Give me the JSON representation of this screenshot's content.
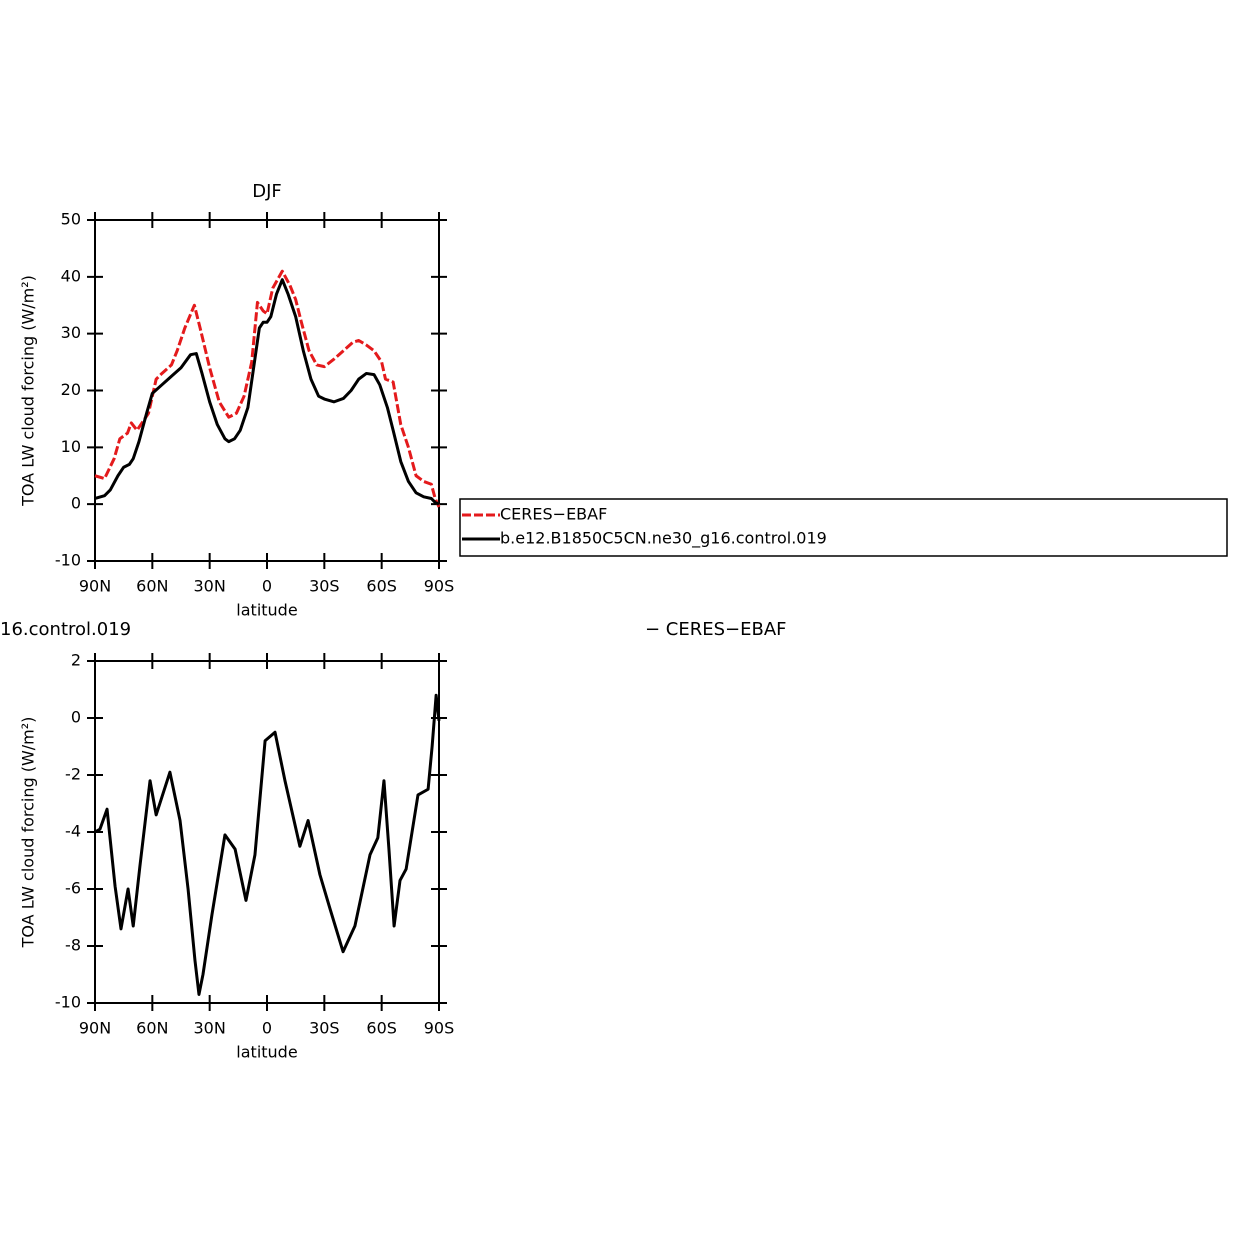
{
  "chart_data": [
    {
      "type": "line",
      "title": "DJF",
      "ylabel": "TOA LW cloud forcing (W/m²)",
      "xlabel": "latitude",
      "xlim": [
        90,
        -90
      ],
      "ylim": [
        -10,
        50
      ],
      "xticks": [
        {
          "value": 90,
          "label": "90N"
        },
        {
          "value": 60,
          "label": "60N"
        },
        {
          "value": 30,
          "label": "30N"
        },
        0,
        {
          "value": -30,
          "label": "30S"
        },
        {
          "value": -60,
          "label": "60S"
        },
        {
          "value": -90,
          "label": "90S"
        }
      ],
      "yticks": [
        -10,
        0,
        10,
        20,
        30,
        40,
        50
      ],
      "legend": "right",
      "series": [
        {
          "name": "CERES−EBAF",
          "color": "#e41a1c",
          "dashed": true,
          "x": [
            90,
            85,
            80,
            77,
            73,
            71,
            68,
            65,
            62,
            58,
            55,
            50,
            47,
            43,
            38,
            35,
            30,
            25,
            20,
            16,
            12,
            8,
            5,
            2,
            0,
            -3,
            -8,
            -12,
            -15,
            -18,
            -22,
            -26,
            -30,
            -35,
            -40,
            -45,
            -48,
            -52,
            -56,
            -60,
            -62,
            -66,
            -70,
            -74,
            -78,
            -82,
            -86,
            -88,
            -90
          ],
          "values": [
            5,
            4.5,
            8,
            11.5,
            12.5,
            14.3,
            13,
            14.5,
            16,
            22,
            23,
            24.5,
            27,
            31,
            35,
            31,
            24,
            18,
            15.3,
            16,
            19,
            25,
            35.5,
            34,
            33.5,
            38,
            41,
            38.5,
            36,
            32,
            27,
            24.5,
            24.2,
            25.5,
            27,
            28.5,
            28.8,
            28,
            27,
            25,
            22,
            21.5,
            14,
            10,
            5,
            4,
            3.5,
            1,
            -0.5
          ]
        },
        {
          "name": "b.e12.B1850C5CN.ne30_g16.control.019",
          "color": "#000000",
          "dashed": false,
          "x": [
            90,
            85,
            82,
            78,
            75,
            72,
            70,
            67,
            63,
            60,
            55,
            50,
            45,
            40,
            37,
            34,
            30,
            26,
            22,
            20,
            17,
            14,
            10,
            7,
            4,
            2,
            0,
            -2,
            -5,
            -8,
            -11,
            -15,
            -19,
            -23,
            -27,
            -30,
            -35,
            -40,
            -44,
            -48,
            -52,
            -56,
            -59,
            -63,
            -66,
            -70,
            -74,
            -78,
            -82,
            -86,
            -88,
            -90
          ],
          "values": [
            1,
            1.5,
            2.5,
            5,
            6.5,
            7,
            8,
            11,
            16,
            19.5,
            21,
            22.5,
            24,
            26.3,
            26.5,
            23,
            18,
            14,
            11.5,
            11,
            11.5,
            13,
            17,
            24,
            31,
            32,
            32,
            33,
            37,
            39.5,
            37,
            33,
            27,
            22,
            19,
            18.5,
            18,
            18.6,
            20,
            22,
            23,
            22.8,
            21,
            17,
            13,
            7.5,
            4,
            2,
            1.3,
            1,
            0.3,
            0
          ]
        }
      ]
    },
    {
      "type": "line",
      "title": "16.control.019",
      "subtitle": "− CERES−EBAF",
      "ylabel": "TOA LW cloud forcing (W/m²)",
      "xlabel": "latitude",
      "xlim": [
        90,
        -90
      ],
      "ylim": [
        -10,
        2
      ],
      "xticks": [
        {
          "value": 90,
          "label": "90N"
        },
        {
          "value": 60,
          "label": "60N"
        },
        {
          "value": 30,
          "label": "30N"
        },
        0,
        {
          "value": -30,
          "label": "30S"
        },
        {
          "value": -60,
          "label": "60S"
        },
        {
          "value": -90,
          "label": "90S"
        }
      ],
      "yticks": [
        -10,
        -8,
        -6,
        -4,
        -2,
        0,
        2
      ],
      "series": [
        {
          "color": "#000000",
          "dashed": false,
          "x": [
            90,
            87.4,
            83.7,
            79.5,
            76.4,
            72.7,
            70,
            66.5,
            61.2,
            58,
            50.8,
            45.5,
            41.3,
            37.7,
            35.6,
            33.5,
            28.8,
            22,
            16.7,
            11,
            6.3,
            1,
            -4.2,
            -9.4,
            -17.2,
            -21.5,
            -27.7,
            -33,
            -39.8,
            -46,
            -53.9,
            -58,
            -61.2,
            -63.8,
            -66.5,
            -69.6,
            -72.8,
            -79,
            -84.3,
            -86.4,
            -88.5,
            -90
          ],
          "values": [
            -4,
            -3.9,
            -3.2,
            -5.9,
            -7.4,
            -6,
            -7.3,
            -5.2,
            -2.2,
            -3.4,
            -1.9,
            -3.6,
            -6,
            -8.5,
            -9.7,
            -9,
            -6.9,
            -4.1,
            -4.6,
            -6.4,
            -4.8,
            -0.8,
            -0.5,
            -2.2,
            -4.5,
            -3.6,
            -5.5,
            -6.7,
            -8.2,
            -7.3,
            -4.8,
            -4.2,
            -2.2,
            -4.6,
            -7.3,
            -5.7,
            -5.3,
            -2.7,
            -2.5,
            -1,
            0.8,
            -0.1
          ]
        }
      ]
    }
  ]
}
